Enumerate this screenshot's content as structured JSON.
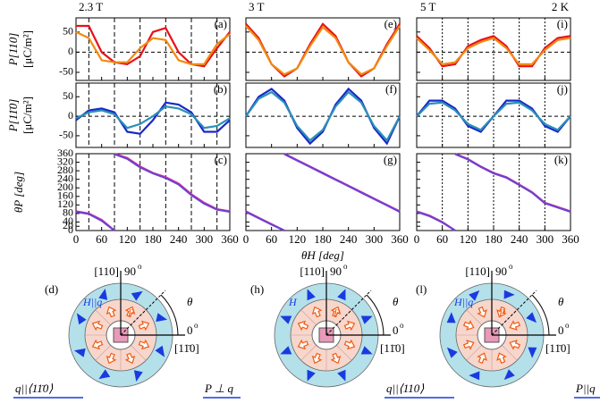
{
  "header": {
    "fields": [
      "2.3 T",
      "3 T",
      "5 T"
    ],
    "temperature": "2 K"
  },
  "chart_data": [
    {
      "type": "line",
      "panel": "(a)",
      "ylabel": "P[110]",
      "yunit": "[μC/m²]",
      "xlim": [
        0,
        360
      ],
      "xticks": [
        0,
        60,
        120,
        180,
        240,
        300,
        360
      ],
      "ylim": [
        -70,
        85
      ],
      "yticks": [
        -50,
        0,
        50
      ],
      "vlines": [
        30,
        90,
        150,
        210,
        270,
        330
      ],
      "reference_line": 0,
      "x": [
        0,
        30,
        60,
        90,
        120,
        150,
        180,
        210,
        240,
        270,
        300,
        330,
        360
      ],
      "series": [
        {
          "color": "#e8101a",
          "values": [
            65,
            65,
            0,
            -25,
            -30,
            -10,
            50,
            60,
            0,
            -30,
            -35,
            10,
            50
          ]
        },
        {
          "color": "#f08a10",
          "values": [
            50,
            35,
            -20,
            -25,
            -25,
            10,
            35,
            30,
            -20,
            -30,
            -30,
            20,
            45
          ]
        }
      ]
    },
    {
      "type": "line",
      "panel": "(b)",
      "ylabel": "P[11̄0]",
      "yunit": "[μC/m²]",
      "xlim": [
        0,
        360
      ],
      "xticks": [
        0,
        60,
        120,
        180,
        240,
        300,
        360
      ],
      "ylim": [
        -80,
        85
      ],
      "yticks": [
        -50,
        0,
        50
      ],
      "vlines": [
        30,
        90,
        150,
        210,
        270,
        330
      ],
      "reference_line": 0,
      "x": [
        0,
        30,
        60,
        90,
        120,
        150,
        180,
        210,
        240,
        270,
        300,
        330,
        360
      ],
      "series": [
        {
          "color": "#1a28c8",
          "values": [
            -10,
            15,
            20,
            10,
            -40,
            -45,
            -10,
            35,
            30,
            10,
            -40,
            -40,
            -10
          ]
        },
        {
          "color": "#2a90b8",
          "values": [
            -5,
            10,
            15,
            5,
            -30,
            -20,
            0,
            25,
            20,
            5,
            -30,
            -25,
            -5
          ]
        }
      ]
    },
    {
      "type": "line",
      "panel": "(c)",
      "ylabel": "θP [deg]",
      "xlim": [
        0,
        360
      ],
      "xticks": [
        0,
        60,
        120,
        180,
        240,
        300,
        360
      ],
      "ylim": [
        0,
        360
      ],
      "yticks": [
        0,
        20,
        40,
        80,
        120,
        160,
        200,
        240,
        280,
        320,
        360
      ],
      "vlines": [
        30,
        90,
        150,
        210,
        270,
        330
      ],
      "x": [
        0,
        30,
        60,
        90,
        90,
        90,
        120,
        150,
        180,
        210,
        240,
        270,
        300,
        330,
        360
      ],
      "series": [
        {
          "color": "#e0309a",
          "values": [
            90,
            80,
            50,
            0,
            null,
            360,
            340,
            300,
            270,
            250,
            220,
            170,
            130,
            100,
            90
          ]
        },
        {
          "color": "#7040d0",
          "values": [
            88,
            78,
            46,
            0,
            null,
            358,
            336,
            296,
            268,
            246,
            216,
            166,
            126,
            98,
            88
          ]
        }
      ]
    },
    {
      "type": "line",
      "panel": "(e)",
      "xlim": [
        0,
        360
      ],
      "xticks": [
        0,
        60,
        120,
        180,
        240,
        300,
        360
      ],
      "ylim": [
        -70,
        85
      ],
      "yticks": [
        -50,
        0,
        50
      ],
      "reference_line": 0,
      "x": [
        0,
        30,
        60,
        90,
        120,
        150,
        180,
        210,
        240,
        270,
        300,
        330,
        360
      ],
      "series": [
        {
          "color": "#e8101a",
          "values": [
            70,
            35,
            -30,
            -60,
            -40,
            20,
            70,
            40,
            -25,
            -60,
            -40,
            20,
            70
          ]
        },
        {
          "color": "#f08a10",
          "values": [
            65,
            30,
            -30,
            -55,
            -40,
            15,
            62,
            35,
            -25,
            -55,
            -40,
            15,
            65
          ]
        }
      ]
    },
    {
      "type": "line",
      "panel": "(f)",
      "xlim": [
        0,
        360
      ],
      "xticks": [
        0,
        60,
        120,
        180,
        240,
        300,
        360
      ],
      "ylim": [
        -80,
        85
      ],
      "yticks": [
        -50,
        0,
        50
      ],
      "reference_line": 0,
      "x": [
        0,
        30,
        60,
        90,
        120,
        150,
        180,
        210,
        240,
        270,
        300,
        330,
        360
      ],
      "series": [
        {
          "color": "#1a28c8",
          "values": [
            0,
            50,
            70,
            40,
            -30,
            -70,
            -40,
            30,
            70,
            40,
            -30,
            -70,
            0
          ]
        },
        {
          "color": "#2a90b8",
          "values": [
            0,
            45,
            62,
            35,
            -25,
            -62,
            -35,
            25,
            62,
            35,
            -25,
            -62,
            0
          ]
        }
      ]
    },
    {
      "type": "line",
      "panel": "(g)",
      "xlabel": "θH [deg]",
      "xlim": [
        0,
        360
      ],
      "xticks": [
        0,
        60,
        120,
        180,
        240,
        300,
        360
      ],
      "ylim": [
        0,
        360
      ],
      "yticks": [
        0,
        20,
        40,
        80,
        120,
        160,
        200,
        240,
        280,
        320,
        360
      ],
      "x": [
        0,
        30,
        60,
        90,
        90,
        90,
        120,
        150,
        180,
        210,
        240,
        270,
        300,
        330,
        360
      ],
      "series": [
        {
          "color": "#e0309a",
          "values": [
            90,
            60,
            30,
            0,
            null,
            360,
            330,
            300,
            270,
            240,
            210,
            180,
            150,
            120,
            90
          ]
        },
        {
          "color": "#7040d0",
          "values": [
            88,
            58,
            28,
            0,
            null,
            358,
            328,
            298,
            268,
            238,
            208,
            178,
            148,
            118,
            88
          ]
        }
      ]
    },
    {
      "type": "line",
      "panel": "(i)",
      "xlim": [
        0,
        360
      ],
      "xticks": [
        0,
        60,
        120,
        180,
        240,
        300,
        360
      ],
      "ylim": [
        -70,
        85
      ],
      "yticks": [
        -50,
        0,
        50
      ],
      "vlines": [
        60,
        120,
        180,
        240,
        300
      ],
      "reference_line": 0,
      "x": [
        0,
        30,
        60,
        90,
        120,
        150,
        180,
        210,
        240,
        270,
        300,
        330,
        360
      ],
      "series": [
        {
          "color": "#e8101a",
          "values": [
            40,
            10,
            -35,
            -30,
            15,
            30,
            40,
            15,
            -35,
            -35,
            10,
            35,
            40
          ]
        },
        {
          "color": "#f08a10",
          "values": [
            35,
            5,
            -30,
            -25,
            10,
            25,
            35,
            10,
            -30,
            -30,
            5,
            30,
            35
          ]
        }
      ]
    },
    {
      "type": "line",
      "panel": "(j)",
      "xlim": [
        0,
        360
      ],
      "xticks": [
        0,
        60,
        120,
        180,
        240,
        300,
        360
      ],
      "ylim": [
        -80,
        85
      ],
      "yticks": [
        -50,
        0,
        50
      ],
      "vlines": [
        60,
        120,
        180,
        240,
        300
      ],
      "reference_line": 0,
      "x": [
        0,
        30,
        60,
        90,
        120,
        150,
        180,
        210,
        240,
        270,
        300,
        330,
        360
      ],
      "series": [
        {
          "color": "#1a28c8",
          "values": [
            0,
            40,
            40,
            20,
            -25,
            -40,
            0,
            40,
            40,
            20,
            -25,
            -40,
            0
          ]
        },
        {
          "color": "#2a90b8",
          "values": [
            0,
            32,
            35,
            15,
            -20,
            -35,
            0,
            32,
            35,
            15,
            -20,
            -35,
            0
          ]
        }
      ]
    },
    {
      "type": "line",
      "panel": "(k)",
      "xlim": [
        0,
        360
      ],
      "xticks": [
        0,
        60,
        120,
        180,
        240,
        300,
        360
      ],
      "ylim": [
        0,
        360
      ],
      "yticks": [
        0,
        20,
        40,
        80,
        120,
        160,
        200,
        240,
        280,
        320,
        360
      ],
      "vlines": [
        60,
        120,
        180,
        240,
        300
      ],
      "x": [
        0,
        30,
        60,
        90,
        90,
        90,
        120,
        150,
        180,
        210,
        240,
        270,
        300,
        330,
        360
      ],
      "series": [
        {
          "color": "#e0309a",
          "values": [
            90,
            70,
            40,
            0,
            null,
            360,
            335,
            300,
            270,
            250,
            215,
            180,
            130,
            110,
            90
          ]
        },
        {
          "color": "#7040d0",
          "values": [
            88,
            68,
            38,
            0,
            null,
            358,
            333,
            298,
            268,
            248,
            213,
            178,
            128,
            108,
            88
          ]
        }
      ]
    }
  ],
  "diagrams": [
    {
      "label": "(d)",
      "axis_top": "[110]",
      "angle_top": "90",
      "angle_right": "0",
      "degree": "o",
      "axis_right": "[11̄0]",
      "theta": "θ",
      "field": "H||q",
      "polarization": "P",
      "caption_left": "q||⟨11̄0⟩",
      "caption_right": "P ⊥ q"
    },
    {
      "label": "(h)",
      "axis_top": "[110]",
      "angle_top": "90",
      "angle_right": "0",
      "degree": "o",
      "axis_right": "[11̄0]",
      "theta": "θ",
      "field": "H",
      "polarization": "P"
    },
    {
      "label": "(l)",
      "axis_top": "[110]",
      "angle_top": "90",
      "angle_right": "0",
      "degree": "o",
      "axis_right": "[11̄0]",
      "theta": "θ",
      "field": "H||q",
      "polarization": "P",
      "caption_left": "q||⟨110⟩",
      "caption_right": "P||q"
    }
  ]
}
